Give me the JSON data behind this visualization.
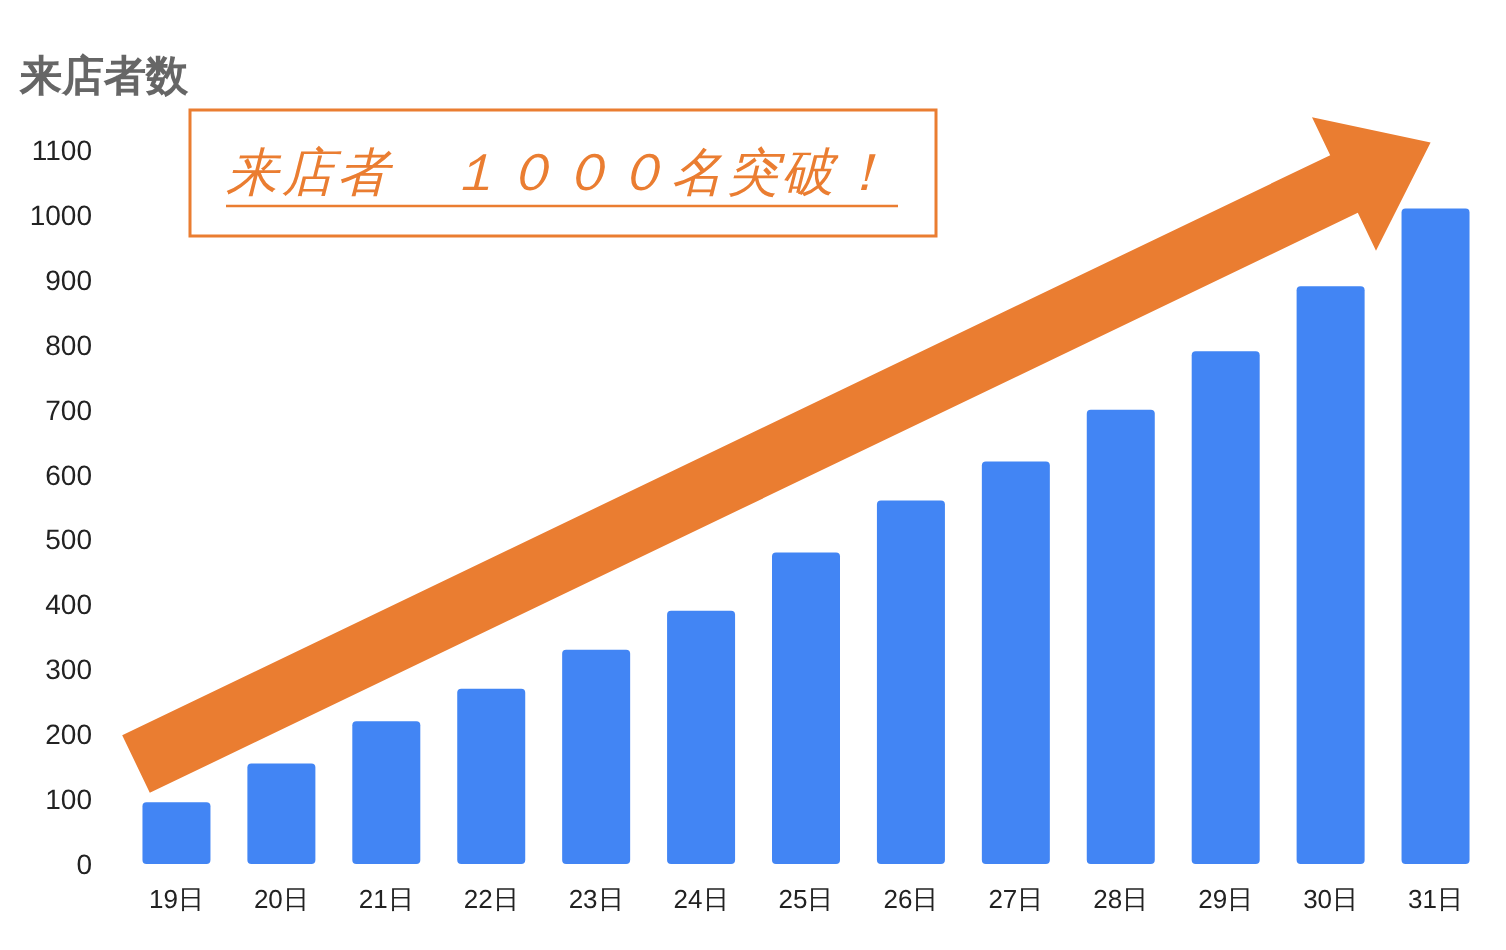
{
  "chart_data": {
    "type": "bar",
    "title": "来店者数",
    "categories": [
      "19日",
      "20日",
      "21日",
      "22日",
      "23日",
      "24日",
      "25日",
      "26日",
      "27日",
      "28日",
      "29日",
      "30日",
      "31日"
    ],
    "values": [
      95,
      155,
      220,
      270,
      330,
      390,
      480,
      560,
      620,
      700,
      790,
      890,
      1010
    ],
    "color": "#4285f4",
    "ylim": [
      0,
      1100
    ],
    "yticks": [
      0,
      100,
      200,
      300,
      400,
      500,
      600,
      700,
      800,
      900,
      1000,
      1100
    ],
    "grid": false,
    "annotations": [
      "来店者　１０００名突破！"
    ]
  }
}
